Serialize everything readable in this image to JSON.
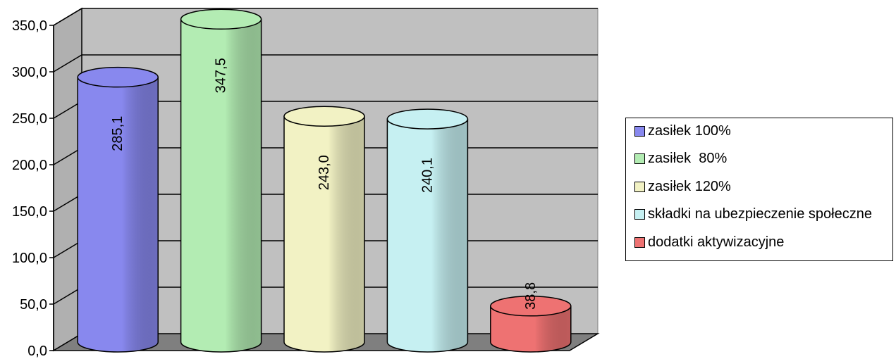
{
  "chart_data": {
    "type": "bar",
    "style": "3d-cylinder",
    "categories": [
      "zasiłek 100%",
      "zasiłek  80%",
      "zasiłek 120%",
      "składki na ubezpieczenie społeczne",
      "dodatki aktywizacyjne"
    ],
    "values": [
      285.1,
      347.5,
      243.0,
      240.1,
      38.8
    ],
    "value_labels": [
      "285,1",
      "347,5",
      "243,0",
      "240,1",
      "38,8"
    ],
    "colors": [
      "#8888ee",
      "#b3ecb3",
      "#f2f2c4",
      "#c6f0f2",
      "#ee7272"
    ],
    "ylim": [
      0,
      350
    ],
    "yticks": [
      "0,0",
      "50,0",
      "100,0",
      "150,0",
      "200,0",
      "250,0",
      "300,0",
      "350,0"
    ],
    "grid": true,
    "legend": "right"
  }
}
